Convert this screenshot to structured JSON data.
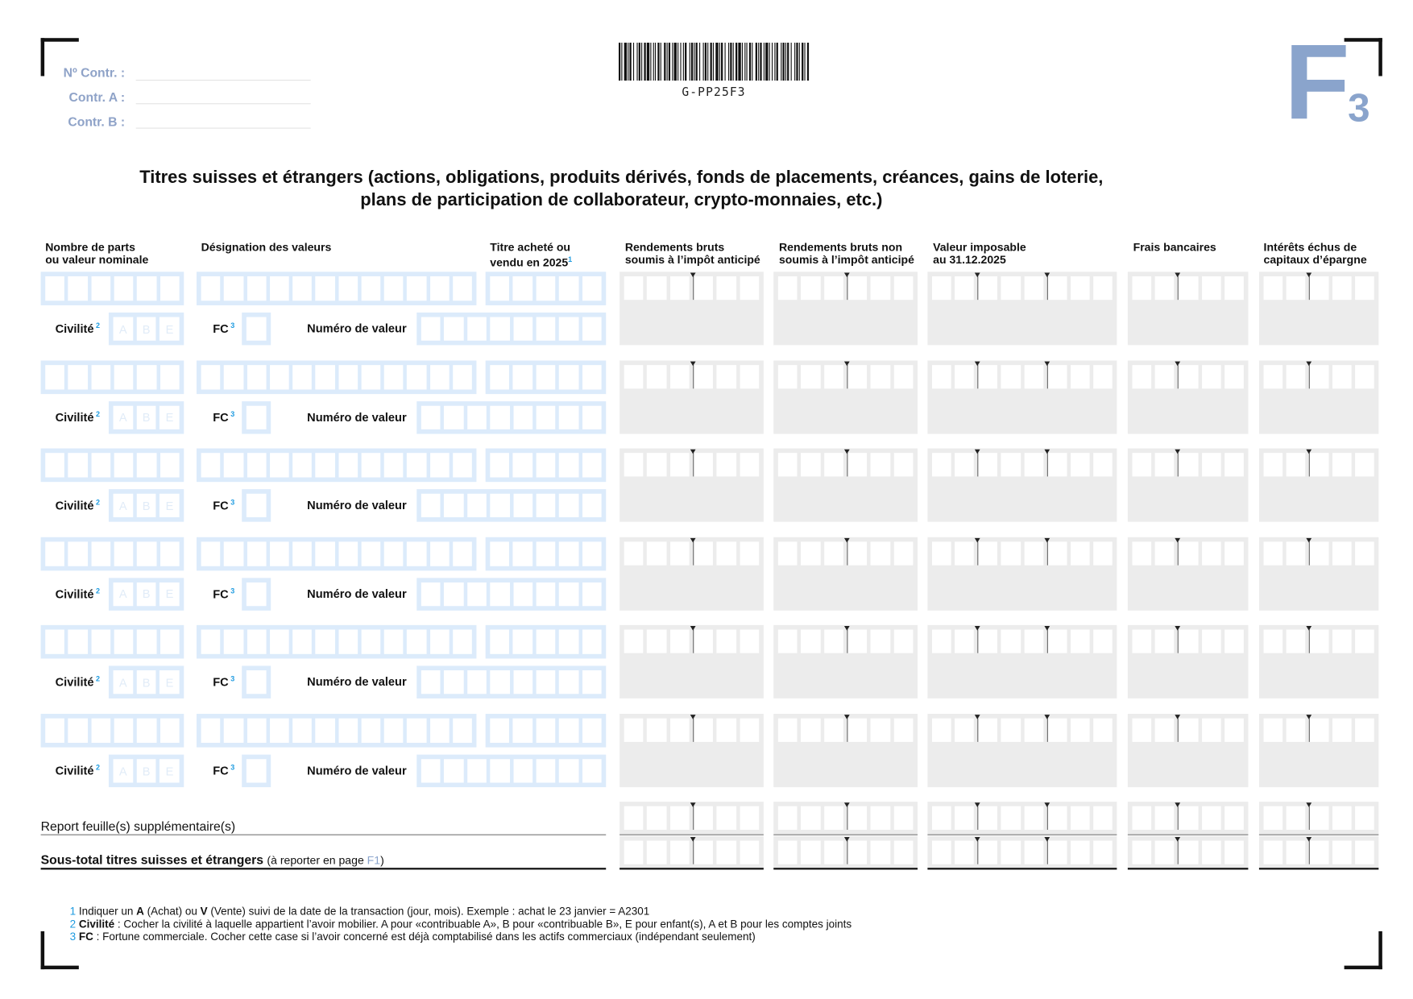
{
  "header": {
    "contr_no_label": "Nº Contr. :",
    "contr_a_label": "Contr. A :",
    "contr_b_label": "Contr. B :",
    "barcode_text": "G-PP25F3",
    "form_letter": "F",
    "form_number": "3"
  },
  "title": {
    "line1": "Titres suisses et étrangers (actions, obligations, produits dérivés, fonds de placements, créances, gains de loterie,",
    "line2": "plans de participation de collaborateur, crypto-monnaies, etc.)"
  },
  "columns": {
    "nombre": [
      "Nombre de parts",
      "ou valeur nominale"
    ],
    "designation": "Désignation des valeurs",
    "titre": [
      "Titre acheté ou",
      "vendu en 2025"
    ],
    "titre_note": "1",
    "rendements_soumis": [
      "Rendements bruts",
      "soumis à l’impôt anticipé"
    ],
    "rendements_non_soumis": [
      "Rendements bruts non",
      "soumis à l’impôt anticipé"
    ],
    "valeur_imposable": [
      "Valeur imposable",
      "au 31.12.2025"
    ],
    "frais": "Frais bancaires",
    "interets": [
      "Intérêts échus de",
      "capitaux d’épargne"
    ]
  },
  "row_labels": {
    "civilite": "Civilité",
    "civilite_note": "2",
    "civilite_options": [
      "A",
      "B",
      "E"
    ],
    "fc": "FC",
    "fc_note": "3",
    "numero": "Numéro de valeur"
  },
  "totals": {
    "report": "Report feuille(s) supplémentaire(s)",
    "sous_total": "Sous-total titres suisses et étrangers",
    "sous_total_hint_pre": "(à reporter en page ",
    "sous_total_hint_link": "F1",
    "sous_total_hint_post": ")"
  },
  "footnotes": [
    {
      "n": "1",
      "parts": [
        "Indiquer un ",
        "A",
        " (Achat) ou ",
        "V",
        " (Vente) suivi de la date de la transaction (jour, mois). Exemple : achat le 23 janvier = A2301"
      ]
    },
    {
      "n": "2",
      "parts": [
        "",
        "Civilité",
        " : Cocher la civilité à laquelle appartient l’avoir mobilier. A pour «contribuable A», B pour «contribuable B», E pour enfant(s), A et B pour les comptes joints"
      ]
    },
    {
      "n": "3",
      "parts": [
        "",
        "FC",
        " : Fortune commerciale. Cocher cette case si l’avoir concerné est déjà comptabilisé dans les actifs commerciaux (indépendant seulement)"
      ]
    }
  ],
  "colors": {
    "field_blue": "#dcebfb",
    "amount_gray": "#ececec",
    "label_blue_gray": "#8fa3c8",
    "note_blue": "#1e9be0"
  }
}
